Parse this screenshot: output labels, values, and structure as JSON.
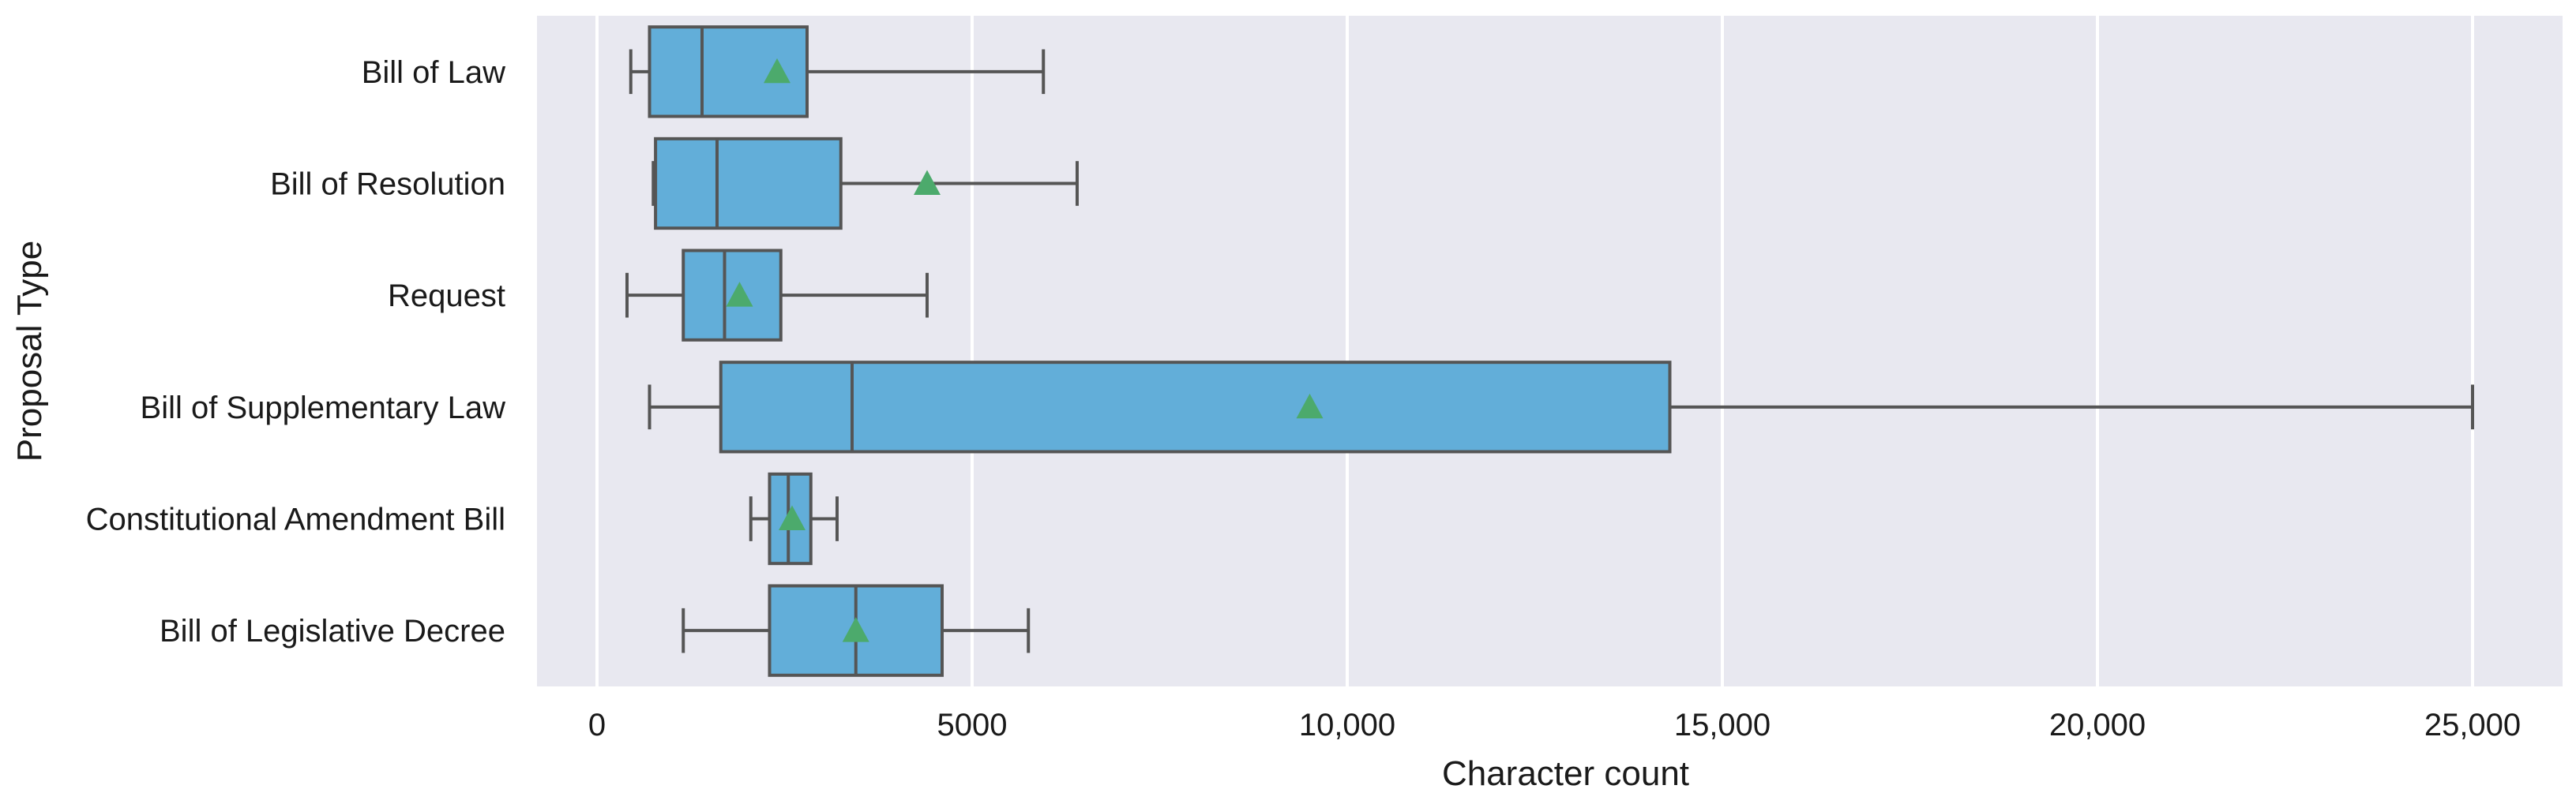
{
  "chart_data": {
    "type": "boxplot",
    "orientation": "horizontal",
    "title": "",
    "xlabel": "Character count",
    "ylabel": "Proposal Type",
    "xlim": [
      -800,
      26200
    ],
    "xticks": [
      0,
      5000,
      10000,
      15000,
      20000,
      25000
    ],
    "xtick_labels": [
      "0",
      "5000",
      "10,000",
      "15,000",
      "20,000",
      "25,000"
    ],
    "grid": true,
    "background": "#e8e8f0",
    "box_color": "#62aed9",
    "line_color": "#555555",
    "mean_marker_color": "#4caa6c",
    "mean_marker": "triangle",
    "categories": [
      "Bill of Law",
      "Bill of Resolution",
      "Request",
      "Bill of Supplementary Law",
      "Constitutional Amendment Bill",
      "Bill of Legislative Decree"
    ],
    "boxes": [
      {
        "category": "Bill of Law",
        "whisker_low": 450,
        "q1": 700,
        "median": 1400,
        "q3": 2800,
        "whisker_high": 5950,
        "mean": 2400
      },
      {
        "category": "Bill of Resolution",
        "whisker_low": 750,
        "q1": 780,
        "median": 1600,
        "q3": 3250,
        "whisker_high": 6400,
        "mean": 4400
      },
      {
        "category": "Request",
        "whisker_low": 400,
        "q1": 1150,
        "median": 1700,
        "q3": 2450,
        "whisker_high": 4400,
        "mean": 1900
      },
      {
        "category": "Bill of Supplementary Law",
        "whisker_low": 700,
        "q1": 1650,
        "median": 3400,
        "q3": 14300,
        "whisker_high": 25000,
        "mean": 9500
      },
      {
        "category": "Constitutional Amendment Bill",
        "whisker_low": 2050,
        "q1": 2300,
        "median": 2550,
        "q3": 2850,
        "whisker_high": 3200,
        "mean": 2600
      },
      {
        "category": "Bill of Legislative Decree",
        "whisker_low": 1150,
        "q1": 2300,
        "median": 3450,
        "q3": 4600,
        "whisker_high": 5750,
        "mean": 3450
      }
    ]
  }
}
